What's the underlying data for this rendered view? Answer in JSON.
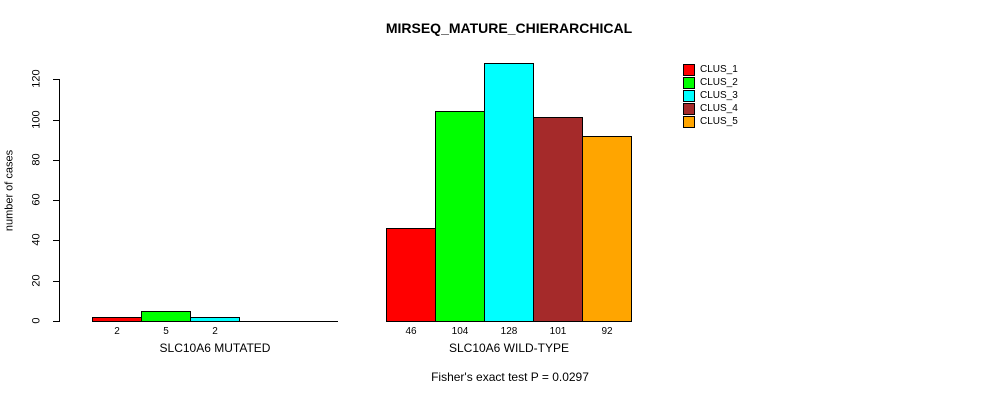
{
  "title": "MIRSEQ_MATURE_CHIERARCHICAL",
  "caption": "Fisher's exact test P = 0.0297",
  "chart_data": {
    "type": "bar",
    "title": "MIRSEQ_MATURE_CHIERARCHICAL",
    "xlabel": "",
    "ylabel": "number of cases",
    "ylim": [
      0,
      128
    ],
    "yticks": [
      0,
      20,
      40,
      60,
      80,
      100,
      120
    ],
    "grid": false,
    "legend_position": "right",
    "legend": [
      {
        "label": "CLUS_1",
        "color": "#FF0000"
      },
      {
        "label": "CLUS_2",
        "color": "#00FF00"
      },
      {
        "label": "CLUS_3",
        "color": "#00FFFF"
      },
      {
        "label": "CLUS_4",
        "color": "#A52A2A"
      },
      {
        "label": "CLUS_5",
        "color": "#FFA500"
      }
    ],
    "groups": [
      {
        "label": "SLC10A6 MUTATED",
        "values": [
          2,
          5,
          2,
          0,
          0
        ],
        "bar_labels": [
          "2",
          "5",
          "2",
          "",
          ""
        ]
      },
      {
        "label": "SLC10A6 WILD-TYPE",
        "values": [
          46,
          104,
          128,
          101,
          92
        ],
        "bar_labels": [
          "46",
          "104",
          "128",
          "101",
          "92"
        ]
      }
    ],
    "annotation": "Fisher's exact test P = 0.0297"
  }
}
